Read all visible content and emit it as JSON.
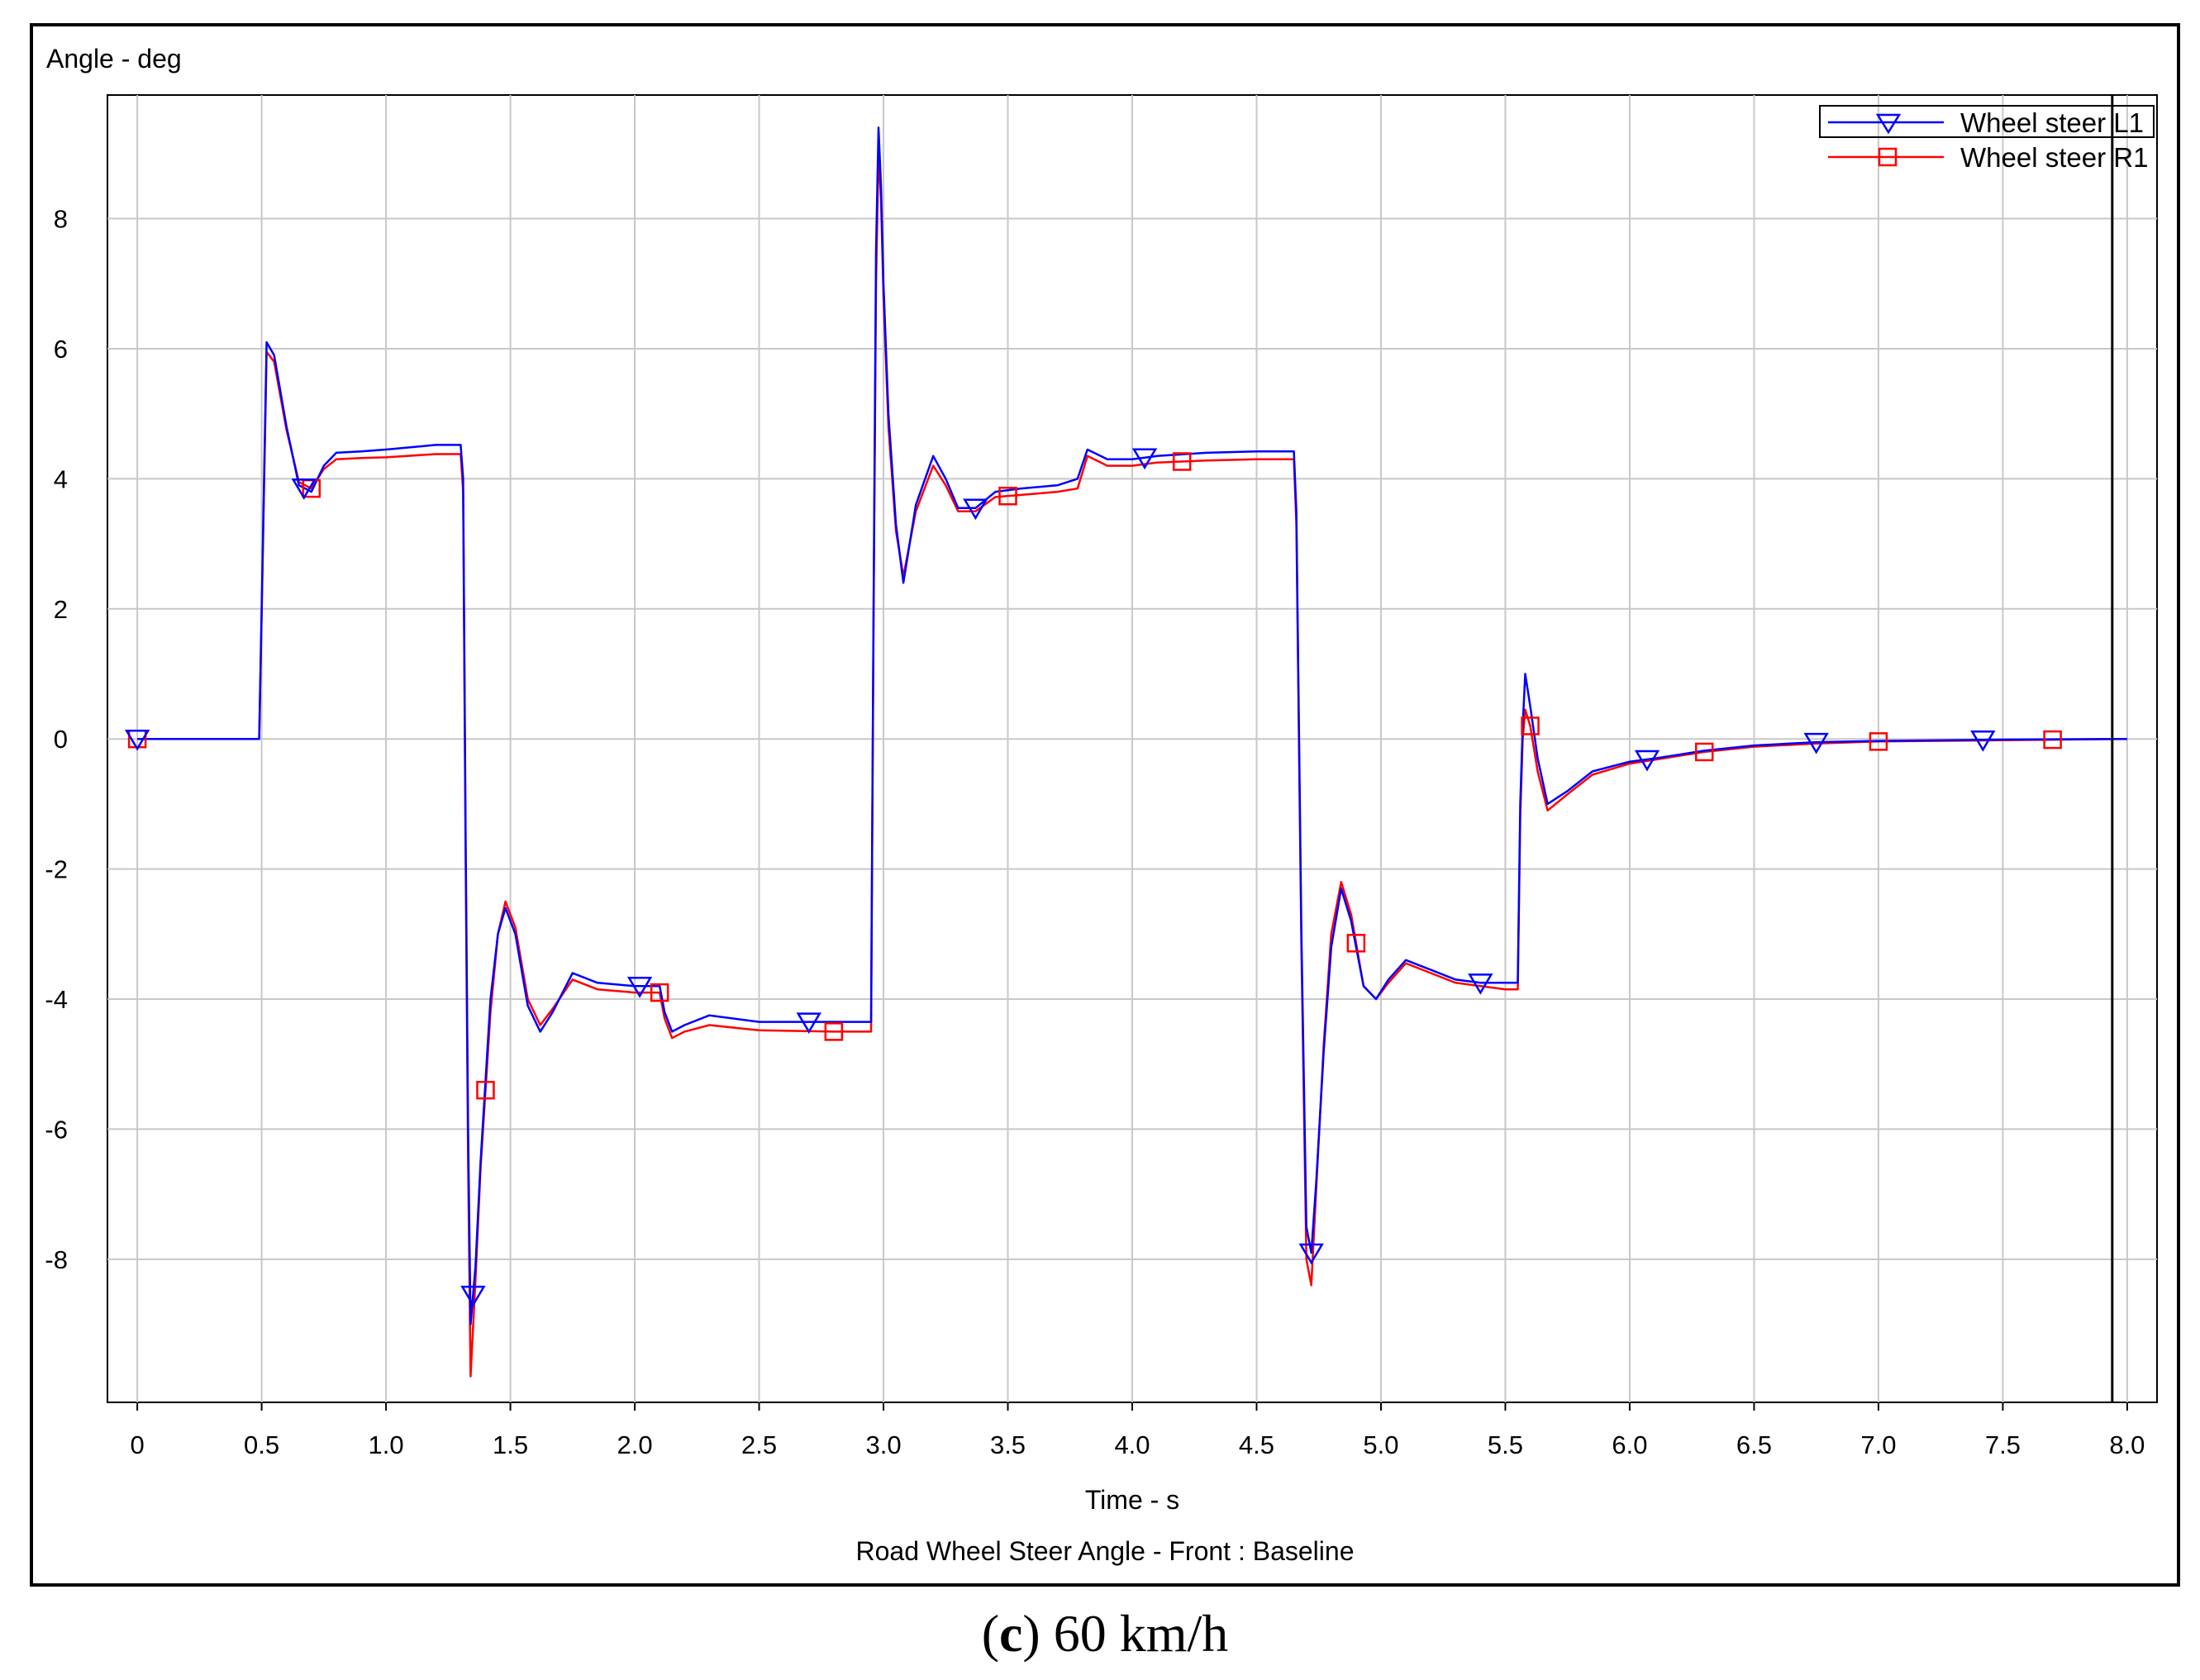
{
  "chart_data": {
    "type": "line",
    "title": "",
    "ylabel": "Angle - deg",
    "xlabel": "Time - s",
    "subtitle": "Road Wheel Steer Angle - Front : Baseline",
    "caption_letter": "c",
    "caption_rest": " 60 km/h",
    "xlim": [
      -0.12,
      8.12
    ],
    "ylim": [
      -10.2,
      9.9
    ],
    "xticks": [
      0,
      0.5,
      1.0,
      1.5,
      2.0,
      2.5,
      3.0,
      3.5,
      4.0,
      4.5,
      5.0,
      5.5,
      6.0,
      6.5,
      7.0,
      7.5,
      8.0
    ],
    "xtick_labels": [
      "0",
      "0.5",
      "1.0",
      "1.5",
      "2.0",
      "2.5",
      "3.0",
      "3.5",
      "4.0",
      "4.5",
      "5.0",
      "5.5",
      "6.0",
      "6.5",
      "7.0",
      "7.5",
      "8.0"
    ],
    "yticks": [
      -8,
      -6,
      -4,
      -2,
      0,
      2,
      4,
      6,
      8
    ],
    "ytick_labels": [
      "-8",
      "-6",
      "-4",
      "-2",
      "0",
      "2",
      "4",
      "6",
      "8"
    ],
    "grid": true,
    "legend_position": "top-right",
    "cursor_x": 7.94,
    "series": [
      {
        "name": "Wheel steer L1",
        "color": "#0000ff",
        "marker": "triangle-down",
        "marker_x": [
          0.0,
          0.67,
          1.35,
          2.02,
          2.7,
          3.37,
          4.05,
          4.72,
          5.4,
          6.07,
          6.75,
          7.42
        ],
        "x": [
          0.0,
          0.49,
          0.5,
          0.52,
          0.55,
          0.6,
          0.65,
          0.7,
          0.75,
          0.8,
          0.9,
          1.0,
          1.2,
          1.3,
          1.31,
          1.32,
          1.33,
          1.34,
          1.36,
          1.38,
          1.42,
          1.45,
          1.48,
          1.52,
          1.57,
          1.62,
          1.67,
          1.75,
          1.85,
          2.0,
          2.1,
          2.12,
          2.15,
          2.2,
          2.3,
          2.5,
          2.8,
          2.95,
          2.96,
          2.97,
          2.98,
          2.99,
          3.0,
          3.02,
          3.05,
          3.08,
          3.13,
          3.2,
          3.25,
          3.3,
          3.37,
          3.45,
          3.55,
          3.7,
          3.78,
          3.82,
          3.9,
          4.0,
          4.1,
          4.3,
          4.5,
          4.65,
          4.66,
          4.68,
          4.7,
          4.72,
          4.74,
          4.77,
          4.8,
          4.84,
          4.88,
          4.93,
          4.98,
          5.03,
          5.1,
          5.2,
          5.3,
          5.4,
          5.5,
          5.55,
          5.56,
          5.57,
          5.58,
          5.6,
          5.63,
          5.67,
          5.75,
          5.85,
          6.0,
          6.1,
          6.3,
          6.5,
          6.75,
          7.0,
          7.5,
          8.0
        ],
        "y": [
          0.0,
          0.0,
          2.0,
          6.1,
          5.9,
          4.8,
          3.9,
          3.8,
          4.2,
          4.4,
          4.42,
          4.45,
          4.52,
          4.52,
          4.0,
          -1.5,
          -6.0,
          -9.0,
          -8.1,
          -6.5,
          -4.0,
          -3.0,
          -2.6,
          -3.0,
          -4.1,
          -4.5,
          -4.2,
          -3.6,
          -3.75,
          -3.8,
          -3.8,
          -4.2,
          -4.5,
          -4.4,
          -4.25,
          -4.35,
          -4.35,
          -4.35,
          2.0,
          7.5,
          9.4,
          8.5,
          7.0,
          5.0,
          3.3,
          2.4,
          3.6,
          4.35,
          4.0,
          3.55,
          3.55,
          3.8,
          3.85,
          3.9,
          4.0,
          4.45,
          4.3,
          4.3,
          4.35,
          4.4,
          4.42,
          4.42,
          3.5,
          -3.0,
          -7.5,
          -7.9,
          -6.8,
          -4.8,
          -3.2,
          -2.3,
          -2.8,
          -3.8,
          -4.0,
          -3.7,
          -3.4,
          -3.55,
          -3.7,
          -3.75,
          -3.75,
          -3.75,
          -1.0,
          0.2,
          1.0,
          0.5,
          -0.3,
          -1.0,
          -0.8,
          -0.5,
          -0.35,
          -0.3,
          -0.18,
          -0.1,
          -0.05,
          -0.03,
          -0.01,
          0.0
        ]
      },
      {
        "name": "Wheel steer R1",
        "color": "#ff0000",
        "marker": "square",
        "marker_x": [
          0.0,
          0.7,
          1.4,
          2.1,
          2.8,
          3.5,
          4.2,
          4.9,
          5.6,
          6.3,
          7.0,
          7.7
        ],
        "x": [
          0.0,
          0.49,
          0.5,
          0.52,
          0.55,
          0.6,
          0.65,
          0.7,
          0.75,
          0.8,
          0.9,
          1.0,
          1.2,
          1.3,
          1.31,
          1.32,
          1.33,
          1.34,
          1.36,
          1.38,
          1.42,
          1.45,
          1.48,
          1.52,
          1.57,
          1.62,
          1.67,
          1.75,
          1.85,
          2.0,
          2.1,
          2.12,
          2.15,
          2.2,
          2.3,
          2.5,
          2.8,
          2.95,
          2.96,
          2.97,
          2.98,
          2.99,
          3.0,
          3.02,
          3.05,
          3.08,
          3.13,
          3.2,
          3.25,
          3.3,
          3.37,
          3.45,
          3.55,
          3.7,
          3.78,
          3.82,
          3.9,
          4.0,
          4.1,
          4.3,
          4.5,
          4.65,
          4.66,
          4.68,
          4.7,
          4.72,
          4.74,
          4.77,
          4.8,
          4.84,
          4.88,
          4.93,
          4.98,
          5.03,
          5.1,
          5.2,
          5.3,
          5.4,
          5.5,
          5.55,
          5.56,
          5.57,
          5.58,
          5.6,
          5.63,
          5.67,
          5.75,
          5.85,
          6.0,
          6.1,
          6.3,
          6.5,
          6.75,
          7.0,
          7.5,
          8.0
        ],
        "y": [
          0.0,
          0.0,
          1.9,
          5.95,
          5.8,
          4.75,
          3.95,
          3.85,
          4.15,
          4.3,
          4.32,
          4.33,
          4.38,
          4.38,
          3.8,
          -1.8,
          -6.5,
          -9.8,
          -8.3,
          -6.6,
          -4.2,
          -3.0,
          -2.5,
          -2.9,
          -4.0,
          -4.4,
          -4.15,
          -3.7,
          -3.85,
          -3.9,
          -3.9,
          -4.3,
          -4.6,
          -4.5,
          -4.4,
          -4.48,
          -4.5,
          -4.5,
          1.8,
          7.0,
          9.0,
          8.3,
          6.8,
          4.8,
          3.2,
          2.5,
          3.5,
          4.2,
          3.9,
          3.5,
          3.5,
          3.72,
          3.75,
          3.8,
          3.85,
          4.35,
          4.2,
          4.2,
          4.25,
          4.28,
          4.3,
          4.3,
          3.3,
          -3.2,
          -8.0,
          -8.4,
          -6.9,
          -4.7,
          -3.0,
          -2.2,
          -2.7,
          -3.8,
          -4.0,
          -3.75,
          -3.45,
          -3.6,
          -3.75,
          -3.8,
          -3.85,
          -3.85,
          -1.2,
          0.0,
          0.45,
          0.2,
          -0.5,
          -1.1,
          -0.85,
          -0.55,
          -0.38,
          -0.32,
          -0.2,
          -0.12,
          -0.07,
          -0.04,
          -0.02,
          0.0
        ]
      }
    ]
  }
}
